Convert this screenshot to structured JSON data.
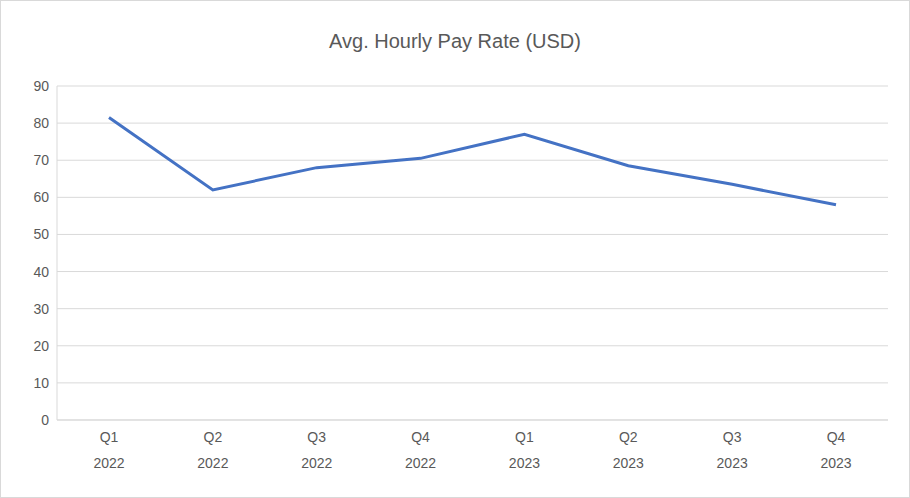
{
  "chart_data": {
    "type": "line",
    "title": "Avg. Hourly Pay Rate (USD)",
    "categories": [
      "Q1 2022",
      "Q2 2022",
      "Q3 2022",
      "Q4 2022",
      "Q1 2023",
      "Q2 2023",
      "Q3 2023",
      "Q4 2023"
    ],
    "values": [
      81.5,
      62,
      68,
      70.5,
      77,
      68.5,
      63.5,
      58
    ],
    "color": "#4472c4",
    "ylim": [
      0,
      90
    ],
    "yticks": [
      0,
      10,
      20,
      30,
      40,
      50,
      60,
      70,
      80,
      90
    ],
    "grid": true
  }
}
